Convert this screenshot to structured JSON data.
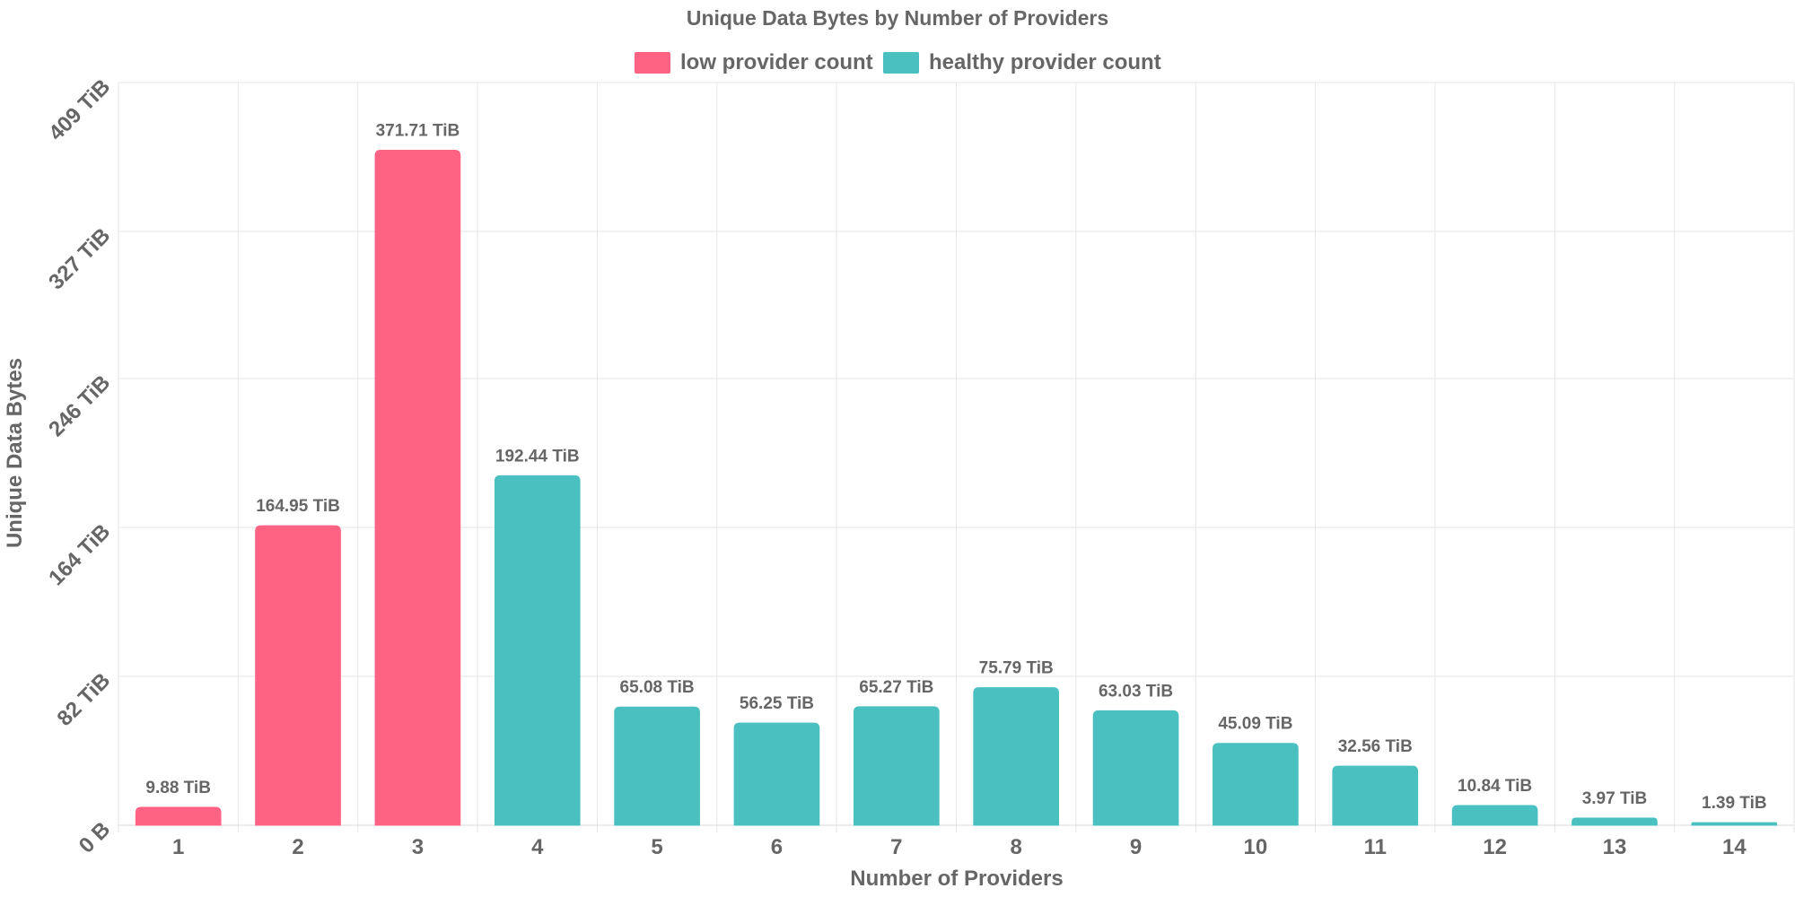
{
  "chart_data": {
    "type": "bar",
    "title": "Unique Data Bytes by Number of Providers",
    "xlabel": "Number of Providers",
    "ylabel": "Unique Data Bytes",
    "categories": [
      "1",
      "2",
      "3",
      "4",
      "5",
      "6",
      "7",
      "8",
      "9",
      "10",
      "11",
      "12",
      "13",
      "14"
    ],
    "values": [
      9.88,
      164.95,
      371.71,
      192.44,
      65.08,
      56.25,
      65.27,
      75.79,
      63.03,
      45.09,
      32.56,
      10.84,
      3.97,
      1.39
    ],
    "value_labels": [
      "9.88 TiB",
      "164.95 TiB",
      "371.71 TiB",
      "192.44 TiB",
      "65.08 TiB",
      "56.25 TiB",
      "65.27 TiB",
      "75.79 TiB",
      "63.03 TiB",
      "45.09 TiB",
      "32.56 TiB",
      "10.84 TiB",
      "3.97 TiB",
      "1.39 TiB"
    ],
    "series_assignment": [
      "low",
      "low",
      "low",
      "healthy",
      "healthy",
      "healthy",
      "healthy",
      "healthy",
      "healthy",
      "healthy",
      "healthy",
      "healthy",
      "healthy",
      "healthy"
    ],
    "legend": [
      {
        "key": "low",
        "label": "low provider count",
        "color": "#ff6384"
      },
      {
        "key": "healthy",
        "label": "healthy provider count",
        "color": "#4bc0c0"
      }
    ],
    "yticks": [
      0,
      82,
      164,
      246,
      327,
      409
    ],
    "ytick_labels": [
      "0 B",
      "82 TiB",
      "164 TiB",
      "246 TiB",
      "327 TiB",
      "409 TiB"
    ],
    "ylim": [
      0,
      409
    ],
    "unit": "TiB",
    "grid": true,
    "legend_position": "top-center"
  }
}
